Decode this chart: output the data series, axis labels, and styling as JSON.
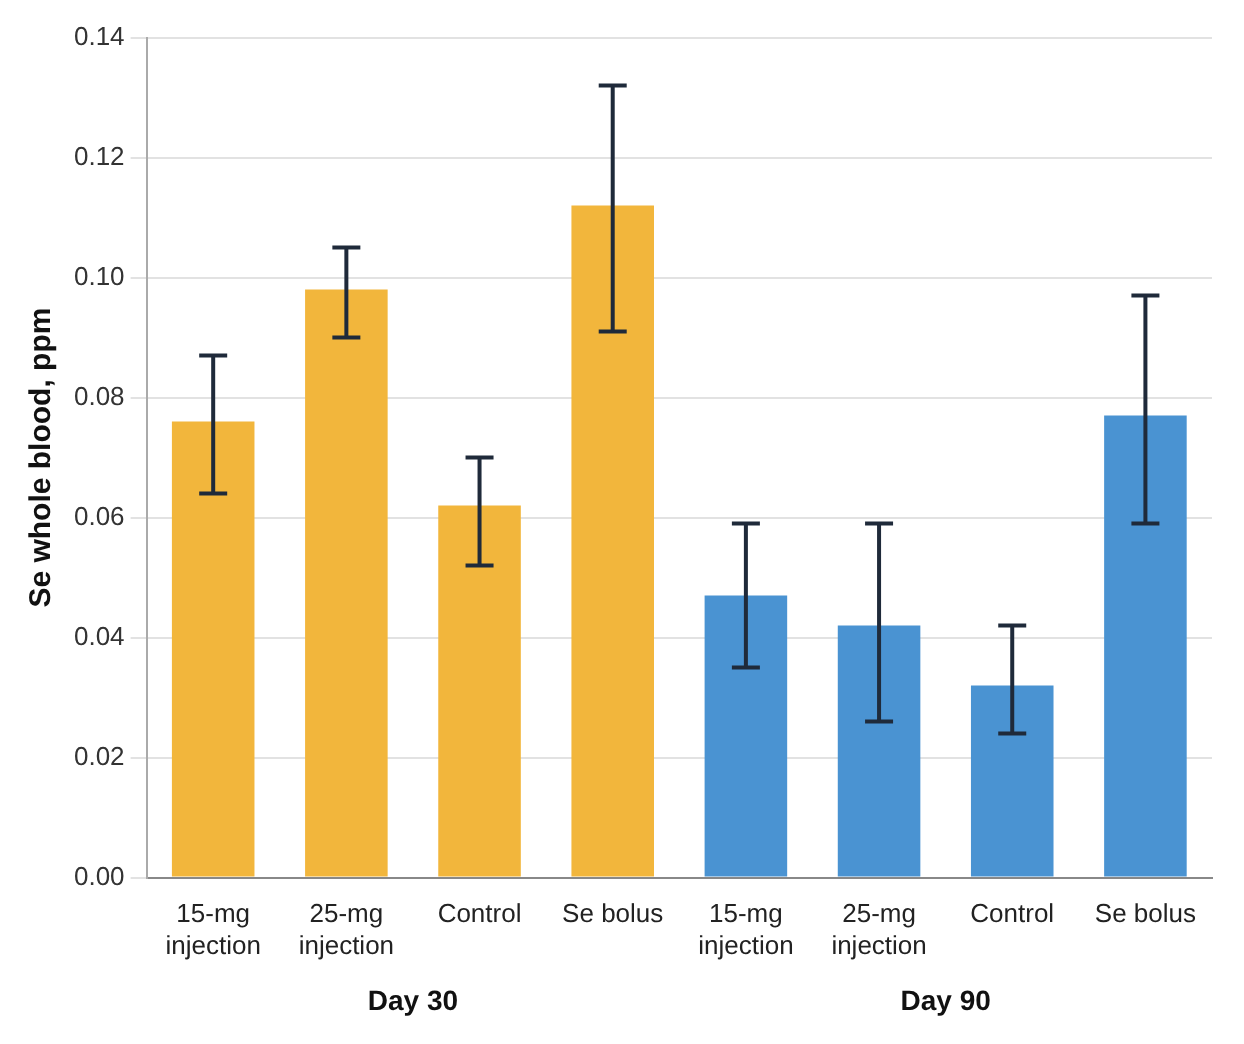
{
  "chart_data": {
    "type": "bar",
    "ylabel": "Se whole blood, ppm",
    "categories": [
      "15-mg injection",
      "25-mg injection",
      "Control",
      "Se bolus",
      "15-mg injection",
      "25-mg injection",
      "Control",
      "Se bolus"
    ],
    "series": [
      {
        "color": "#f2b63c",
        "values": [
          0.076,
          0.098,
          0.062,
          0.112,
          null,
          null,
          null,
          null
        ],
        "errors": [
          [
            0.064,
            0.087
          ],
          [
            0.09,
            0.105
          ],
          [
            0.052,
            0.07
          ],
          [
            0.091,
            0.132
          ],
          null,
          null,
          null,
          null
        ]
      },
      {
        "color": "#4a93d2",
        "values": [
          null,
          null,
          null,
          null,
          0.047,
          0.042,
          0.032,
          0.077
        ],
        "errors": [
          null,
          null,
          null,
          null,
          [
            0.035,
            0.059
          ],
          [
            0.026,
            0.059
          ],
          [
            0.024,
            0.042
          ],
          [
            0.059,
            0.097
          ]
        ]
      }
    ],
    "ylim": [
      0,
      0.14
    ],
    "yticks": [
      {
        "value": 0,
        "label": "0.00"
      },
      {
        "value": 0.02,
        "label": "0.02"
      },
      {
        "value": 0.04,
        "label": "0.04"
      },
      {
        "value": 0.06,
        "label": "0.06"
      },
      {
        "value": 0.08,
        "label": "0.08"
      },
      {
        "value": 0.1,
        "label": "0.10"
      },
      {
        "value": 0.12,
        "label": "0.12"
      },
      {
        "value": 0.14,
        "label": "0.14"
      }
    ],
    "annotations": [
      "Day 30",
      "Day 90"
    ],
    "grid": "y",
    "legend": false
  }
}
